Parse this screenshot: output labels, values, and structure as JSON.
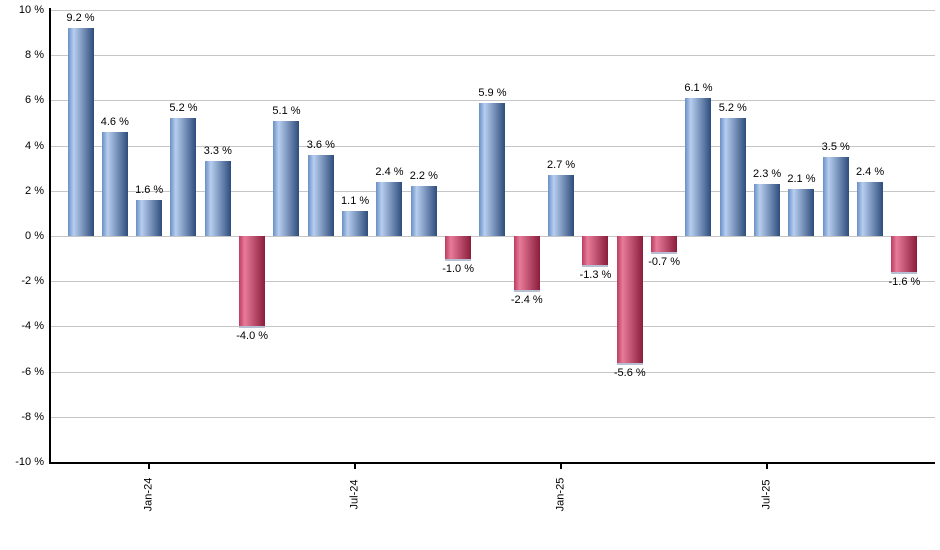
{
  "chart_data": {
    "type": "bar",
    "title": "",
    "xlabel": "",
    "ylabel": "",
    "grid": "horizontal",
    "legend": "none",
    "y_axis": {
      "min": -10,
      "max": 10,
      "step": 2,
      "tick_labels": [
        "10 %",
        "8 %",
        "6 %",
        "4 %",
        "2 %",
        "0 %",
        "-2 %",
        "-4 %",
        "-6 %",
        "-8 %",
        "-10 %"
      ]
    },
    "x_axis": {
      "tick_labels": [
        {
          "bar_index": 2,
          "label": "Jan-24"
        },
        {
          "bar_index": 8,
          "label": "Jul-24"
        },
        {
          "bar_index": 14,
          "label": "Jan-25"
        },
        {
          "bar_index": 20,
          "label": "Jul-25"
        }
      ]
    },
    "bars": [
      {
        "value": 9.2,
        "label": "9.2 %"
      },
      {
        "value": 4.6,
        "label": "4.6 %"
      },
      {
        "value": 1.6,
        "label": "1.6 %"
      },
      {
        "value": 5.2,
        "label": "5.2 %"
      },
      {
        "value": 3.3,
        "label": "3.3 %"
      },
      {
        "value": -4.0,
        "label": "-4.0 %"
      },
      {
        "value": 5.1,
        "label": "5.1 %"
      },
      {
        "value": 3.6,
        "label": "3.6 %"
      },
      {
        "value": 1.1,
        "label": "1.1 %"
      },
      {
        "value": 2.4,
        "label": "2.4 %"
      },
      {
        "value": 2.2,
        "label": "2.2 %"
      },
      {
        "value": -1.0,
        "label": "-1.0 %"
      },
      {
        "value": 5.9,
        "label": "5.9 %"
      },
      {
        "value": -2.4,
        "label": "-2.4 %"
      },
      {
        "value": 2.7,
        "label": "2.7 %"
      },
      {
        "value": -1.3,
        "label": "-1.3 %"
      },
      {
        "value": -5.6,
        "label": "-5.6 %"
      },
      {
        "value": -0.7,
        "label": "-0.7 %"
      },
      {
        "value": 6.1,
        "label": "6.1 %"
      },
      {
        "value": 5.2,
        "label": "5.2 %"
      },
      {
        "value": 2.3,
        "label": "2.3 %"
      },
      {
        "value": 2.1,
        "label": "2.1 %"
      },
      {
        "value": 3.5,
        "label": "3.5 %"
      },
      {
        "value": 2.4,
        "label": "2.4 %"
      },
      {
        "value": -1.6,
        "label": "-1.6 %"
      }
    ],
    "colors": {
      "positive_bar_edge": "#6a8fc4",
      "positive_bar_light": "#b7cef0",
      "positive_bar_dark": "#2e4d7c",
      "negative_bar_edge": "#bb3d60",
      "negative_bar_light": "#e77b99",
      "negative_bar_dark": "#8a1c3c",
      "gridline": "#c6c6c6",
      "axis": "#000000",
      "label_text": "#000000",
      "background": "#ffffff"
    }
  }
}
